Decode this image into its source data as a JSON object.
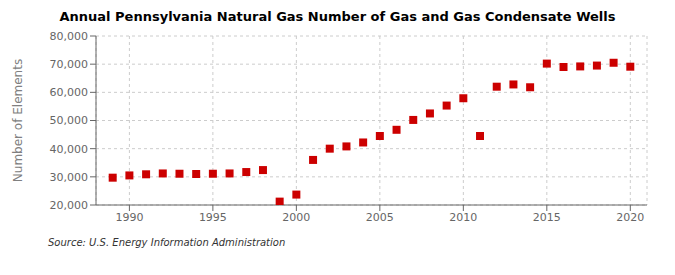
{
  "chart_data": {
    "type": "scatter",
    "title": "Annual Pennsylvania Natural Gas Number of Gas and Gas Condensate Wells",
    "ylabel": "Number of Elements",
    "annotation": "Source: U.S. Energy Information Administration",
    "x": [
      1989,
      1990,
      1991,
      1992,
      1993,
      1994,
      1995,
      1996,
      1997,
      1998,
      1999,
      2000,
      2001,
      2002,
      2003,
      2004,
      2005,
      2006,
      2007,
      2008,
      2009,
      2010,
      2011,
      2012,
      2013,
      2014,
      2015,
      2016,
      2017,
      2018,
      2019,
      2020
    ],
    "values": [
      29700,
      30500,
      30900,
      31200,
      31100,
      31000,
      31100,
      31200,
      31700,
      32400,
      21200,
      23700,
      36000,
      40000,
      40800,
      42200,
      44500,
      46700,
      50200,
      52500,
      55300,
      57900,
      44500,
      62000,
      62800,
      61800,
      70200,
      69000,
      69200,
      69500,
      70500,
      69100
    ],
    "color": "#cc0000",
    "marker": "square",
    "xlim": [
      1988,
      2021
    ],
    "ylim": [
      20000,
      80000
    ],
    "xticks": [
      1990,
      1995,
      2000,
      2005,
      2010,
      2015,
      2020
    ],
    "yticks": [
      {
        "value": 20000,
        "label": "20,000"
      },
      {
        "value": 30000,
        "label": "30,000"
      },
      {
        "value": 40000,
        "label": "40,000"
      },
      {
        "value": 50000,
        "label": "50,000"
      },
      {
        "value": 60000,
        "label": "60,000"
      },
      {
        "value": 70000,
        "label": "70,000"
      },
      {
        "value": 80000,
        "label": "80,000"
      }
    ],
    "grid": true
  }
}
